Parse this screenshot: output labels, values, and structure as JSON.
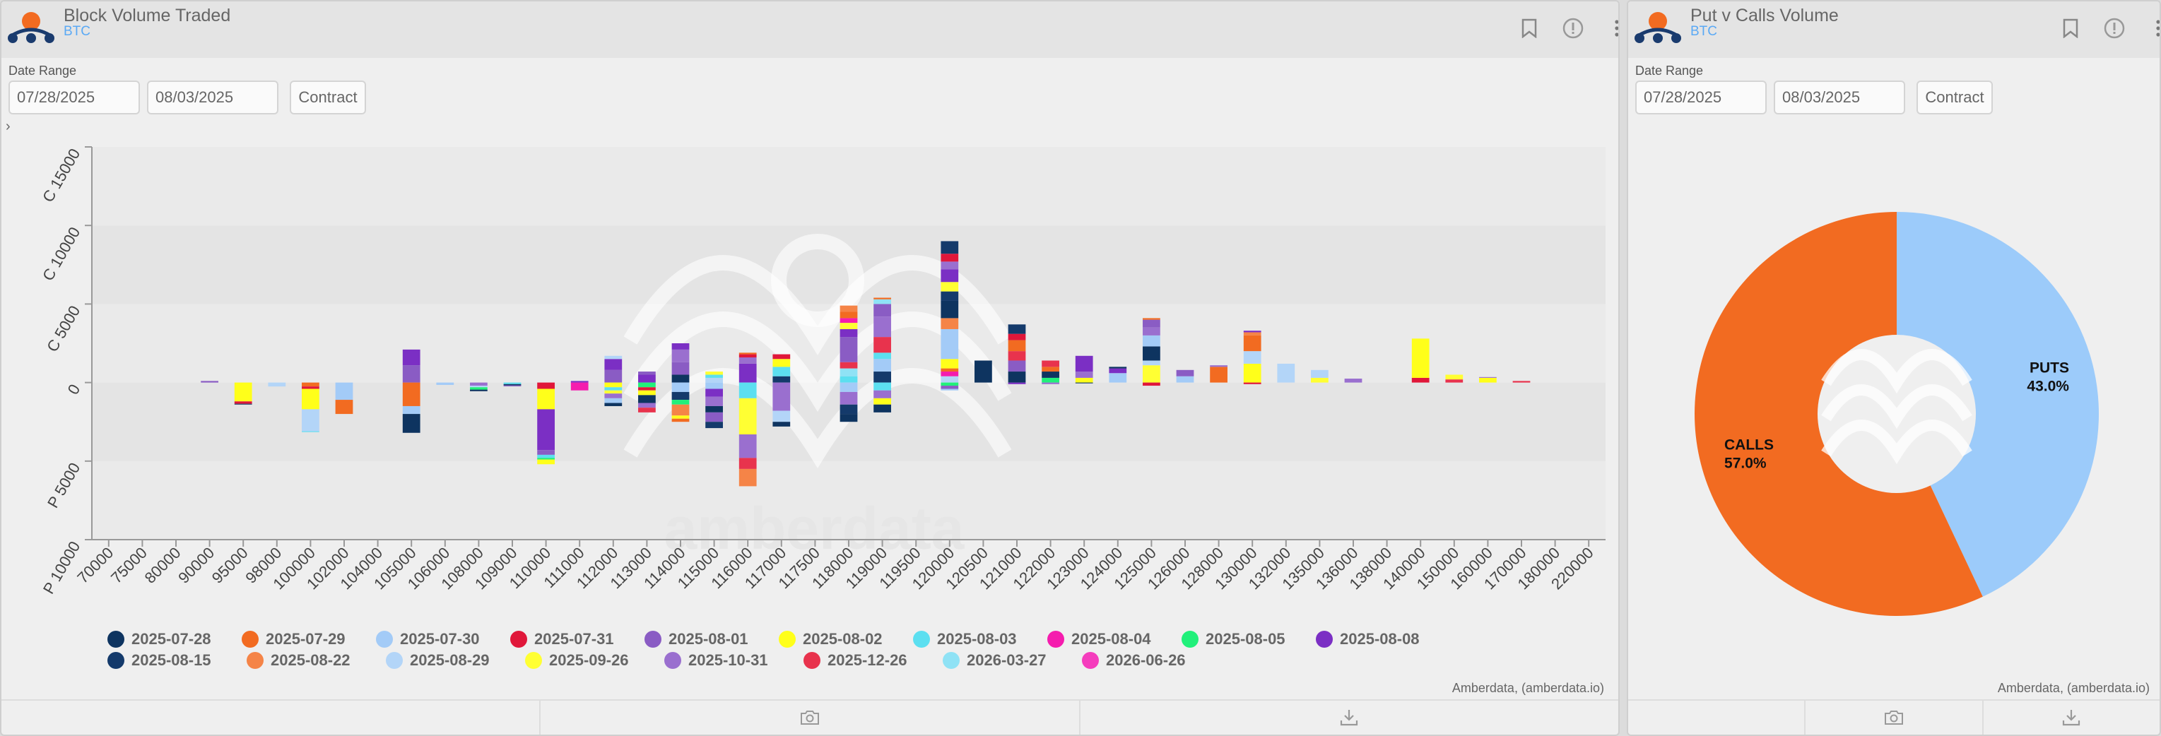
{
  "left_panel": {
    "title": "Block Volume Traded",
    "subtitle": "BTC",
    "date_range_label": "Date Range",
    "start_date": "07/28/2025",
    "end_date": "08/03/2025",
    "contract_label": "Contract",
    "credit": "Amberdata, (amberdata.io)",
    "watermark": "amberdata"
  },
  "right_panel": {
    "title": "Put v Calls Volume",
    "subtitle": "BTC",
    "date_range_label": "Date Range",
    "start_date": "07/28/2025",
    "end_date": "08/03/2025",
    "contract_label": "Contract",
    "credit": "Amberdata, (amberdata.io)",
    "watermark": "amberdata"
  },
  "icons": [
    "logo-icon",
    "bookmark-icon",
    "info-icon",
    "more-icon",
    "chevron-right-icon",
    "camera-icon",
    "download-icon"
  ],
  "chart_data": [
    {
      "type": "bar",
      "stacked": true,
      "ylim": [
        -10000,
        15000
      ],
      "ytick_values": [
        -10000,
        -5000,
        0,
        5000,
        10000,
        15000
      ],
      "ytick_labels": [
        "P 10000",
        "P 5000",
        "0",
        "C 5000",
        "C 10000",
        "C 15000"
      ],
      "categories": [
        "70000",
        "75000",
        "80000",
        "90000",
        "95000",
        "98000",
        "100000",
        "102000",
        "104000",
        "105000",
        "106000",
        "108000",
        "109000",
        "110000",
        "111000",
        "112000",
        "113000",
        "114000",
        "115000",
        "116000",
        "117000",
        "117500",
        "118000",
        "119000",
        "119500",
        "120000",
        "120500",
        "121000",
        "122000",
        "123000",
        "124000",
        "125000",
        "126000",
        "128000",
        "130000",
        "132000",
        "135000",
        "136000",
        "138000",
        "140000",
        "150000",
        "160000",
        "170000",
        "180000",
        "220000"
      ],
      "legend": [
        {
          "name": "2025-07-28",
          "color": "#0e3460"
        },
        {
          "name": "2025-07-29",
          "color": "#f26b21"
        },
        {
          "name": "2025-07-30",
          "color": "#a3cbf7"
        },
        {
          "name": "2025-07-31",
          "color": "#e0173a"
        },
        {
          "name": "2025-08-01",
          "color": "#8a5cc4"
        },
        {
          "name": "2025-08-02",
          "color": "#ffff1a"
        },
        {
          "name": "2025-08-03",
          "color": "#5cdff0"
        },
        {
          "name": "2025-08-04",
          "color": "#f51cae"
        },
        {
          "name": "2025-08-05",
          "color": "#21f07a"
        },
        {
          "name": "2025-08-08",
          "color": "#7b2fc4"
        },
        {
          "name": "2025-08-15",
          "color": "#143a6b"
        },
        {
          "name": "2025-08-22",
          "color": "#f58447"
        },
        {
          "name": "2025-08-29",
          "color": "#b3d5f8"
        },
        {
          "name": "2025-09-26",
          "color": "#ffff33"
        },
        {
          "name": "2025-10-31",
          "color": "#9a6fcf"
        },
        {
          "name": "2025-12-26",
          "color": "#e8334d"
        },
        {
          "name": "2026-03-27",
          "color": "#8fe2f5"
        },
        {
          "name": "2026-06-26",
          "color": "#f53dbd"
        }
      ],
      "stacks": [
        {
          "x": "90000",
          "segments": [
            [
              4,
              100
            ]
          ]
        },
        {
          "x": "95000",
          "segments": [
            [
              5,
              -1200
            ],
            [
              3,
              -150
            ],
            [
              0,
              -50
            ]
          ]
        },
        {
          "x": "98000",
          "segments": [
            [
              12,
              -250
            ]
          ]
        },
        {
          "x": "100000",
          "segments": [
            [
              1,
              -250
            ],
            [
              3,
              -150
            ],
            [
              5,
              -1300
            ],
            [
              12,
              -1400
            ],
            [
              6,
              -50
            ]
          ]
        },
        {
          "x": "102000",
          "segments": [
            [
              2,
              -1100
            ],
            [
              1,
              -900
            ]
          ]
        },
        {
          "x": "105000",
          "segments": [
            [
              4,
              1100
            ],
            [
              9,
              1000
            ],
            [
              1,
              -1500
            ],
            [
              2,
              -500
            ],
            [
              0,
              -1200
            ]
          ]
        },
        {
          "x": "106000",
          "segments": [
            [
              2,
              -150
            ]
          ]
        },
        {
          "x": "108000",
          "segments": [
            [
              14,
              -200
            ],
            [
              12,
              -100
            ],
            [
              8,
              -150
            ],
            [
              0,
              -100
            ]
          ]
        },
        {
          "x": "109000",
          "segments": [
            [
              6,
              -100
            ],
            [
              0,
              -80
            ],
            [
              4,
              -60
            ]
          ]
        },
        {
          "x": "110000",
          "segments": [
            [
              3,
              -400
            ],
            [
              5,
              -1300
            ],
            [
              9,
              -2600
            ],
            [
              4,
              -300
            ],
            [
              6,
              -200
            ],
            [
              8,
              -100
            ],
            [
              5,
              -300
            ]
          ]
        },
        {
          "x": "111000",
          "segments": [
            [
              9,
              100
            ],
            [
              7,
              -500
            ]
          ]
        },
        {
          "x": "112000",
          "segments": [
            [
              4,
              800
            ],
            [
              9,
              700
            ],
            [
              12,
              200
            ],
            [
              5,
              -300
            ],
            [
              6,
              -200
            ],
            [
              13,
              -200
            ],
            [
              14,
              -300
            ],
            [
              2,
              -300
            ],
            [
              0,
              -200
            ]
          ]
        },
        {
          "x": "113000",
          "segments": [
            [
              9,
              500
            ],
            [
              4,
              200
            ],
            [
              8,
              -300
            ],
            [
              3,
              -200
            ],
            [
              5,
              -300
            ],
            [
              0,
              -500
            ],
            [
              14,
              -300
            ],
            [
              15,
              -300
            ]
          ]
        },
        {
          "x": "114000",
          "segments": [
            [
              0,
              500
            ],
            [
              4,
              800
            ],
            [
              14,
              800
            ],
            [
              9,
              400
            ],
            [
              2,
              -600
            ],
            [
              10,
              -500
            ],
            [
              8,
              -300
            ],
            [
              11,
              -700
            ],
            [
              5,
              -200
            ],
            [
              1,
              -200
            ]
          ]
        },
        {
          "x": "115000",
          "segments": [
            [
              12,
              300
            ],
            [
              6,
              200
            ],
            [
              13,
              200
            ],
            [
              2,
              -400
            ],
            [
              9,
              -500
            ],
            [
              14,
              -600
            ],
            [
              0,
              -400
            ],
            [
              4,
              -600
            ],
            [
              10,
              -400
            ]
          ]
        },
        {
          "x": "116000",
          "segments": [
            [
              9,
              1200
            ],
            [
              14,
              400
            ],
            [
              3,
              200
            ],
            [
              1,
              100
            ],
            [
              6,
              -1000
            ],
            [
              13,
              -2300
            ],
            [
              14,
              -1500
            ],
            [
              15,
              -700
            ],
            [
              11,
              -1100
            ]
          ]
        },
        {
          "x": "117000",
          "segments": [
            [
              10,
              400
            ],
            [
              6,
              600
            ],
            [
              5,
              500
            ],
            [
              3,
              300
            ],
            [
              14,
              -1800
            ],
            [
              12,
              -700
            ],
            [
              0,
              -300
            ]
          ]
        },
        {
          "x": "118000",
          "segments": [
            [
              6,
              400
            ],
            [
              16,
              500
            ],
            [
              15,
              400
            ],
            [
              4,
              1600
            ],
            [
              9,
              500
            ],
            [
              13,
              400
            ],
            [
              7,
              300
            ],
            [
              1,
              400
            ],
            [
              11,
              400
            ],
            [
              2,
              -600
            ],
            [
              14,
              -800
            ],
            [
              10,
              -600
            ],
            [
              0,
              -500
            ]
          ]
        },
        {
          "x": "119000",
          "segments": [
            [
              10,
              700
            ],
            [
              2,
              800
            ],
            [
              6,
              400
            ],
            [
              15,
              1000
            ],
            [
              14,
              1300
            ],
            [
              4,
              800
            ],
            [
              16,
              300
            ],
            [
              1,
              100
            ],
            [
              6,
              -500
            ],
            [
              14,
              -500
            ],
            [
              5,
              -400
            ],
            [
              0,
              -500
            ]
          ]
        },
        {
          "x": "120000",
          "segments": [
            [
              12,
              400
            ],
            [
              7,
              300
            ],
            [
              1,
              200
            ],
            [
              5,
              600
            ],
            [
              2,
              1900
            ],
            [
              11,
              700
            ],
            [
              0,
              1100
            ],
            [
              10,
              600
            ],
            [
              13,
              600
            ],
            [
              9,
              800
            ],
            [
              14,
              500
            ],
            [
              3,
              500
            ],
            [
              10,
              800
            ],
            [
              8,
              -200
            ],
            [
              4,
              -200
            ],
            [
              2,
              -100
            ]
          ]
        },
        {
          "x": "120500",
          "segments": [
            [
              0,
              1400
            ]
          ]
        },
        {
          "x": "121000",
          "segments": [
            [
              0,
              700
            ],
            [
              4,
              700
            ],
            [
              15,
              600
            ],
            [
              1,
              700
            ],
            [
              3,
              400
            ],
            [
              10,
              600
            ],
            [
              9,
              -100
            ]
          ]
        },
        {
          "x": "122000",
          "segments": [
            [
              8,
              300
            ],
            [
              0,
              400
            ],
            [
              1,
              300
            ],
            [
              15,
              400
            ],
            [
              14,
              -100
            ]
          ]
        },
        {
          "x": "123000",
          "segments": [
            [
              5,
              300
            ],
            [
              14,
              400
            ],
            [
              9,
              1000
            ],
            [
              0,
              -50
            ]
          ]
        },
        {
          "x": "124000",
          "segments": [
            [
              2,
              600
            ],
            [
              9,
              300
            ],
            [
              0,
              100
            ]
          ]
        },
        {
          "x": "125000",
          "segments": [
            [
              13,
              1100
            ],
            [
              12,
              300
            ],
            [
              0,
              900
            ],
            [
              2,
              700
            ],
            [
              14,
              500
            ],
            [
              4,
              500
            ],
            [
              1,
              100
            ],
            [
              3,
              -200
            ]
          ]
        },
        {
          "x": "126000",
          "segments": [
            [
              2,
              400
            ],
            [
              4,
              400
            ]
          ]
        },
        {
          "x": "128000",
          "segments": [
            [
              1,
              1000
            ],
            [
              14,
              100
            ]
          ]
        },
        {
          "x": "130000",
          "segments": [
            [
              5,
              1200
            ],
            [
              12,
              800
            ],
            [
              1,
              1000
            ],
            [
              11,
              200
            ],
            [
              9,
              100
            ],
            [
              3,
              -100
            ]
          ]
        },
        {
          "x": "132000",
          "segments": [
            [
              12,
              1200
            ]
          ]
        },
        {
          "x": "135000",
          "segments": [
            [
              13,
              300
            ],
            [
              12,
              500
            ]
          ]
        },
        {
          "x": "136000",
          "segments": [
            [
              14,
              250
            ]
          ]
        },
        {
          "x": "140000",
          "segments": [
            [
              3,
              300
            ],
            [
              5,
              2500
            ]
          ]
        },
        {
          "x": "150000",
          "segments": [
            [
              15,
              200
            ],
            [
              13,
              300
            ]
          ]
        },
        {
          "x": "160000",
          "segments": [
            [
              5,
              300
            ],
            [
              14,
              50
            ]
          ]
        },
        {
          "x": "170000",
          "segments": [
            [
              15,
              100
            ]
          ]
        }
      ]
    },
    {
      "type": "pie",
      "donut": true,
      "slices": [
        {
          "label": "PUTS",
          "value": 43.0,
          "display": "43.0%",
          "color": "#9ccbfa"
        },
        {
          "label": "CALLS",
          "value": 57.0,
          "display": "57.0%",
          "color": "#f26b21"
        }
      ]
    }
  ]
}
